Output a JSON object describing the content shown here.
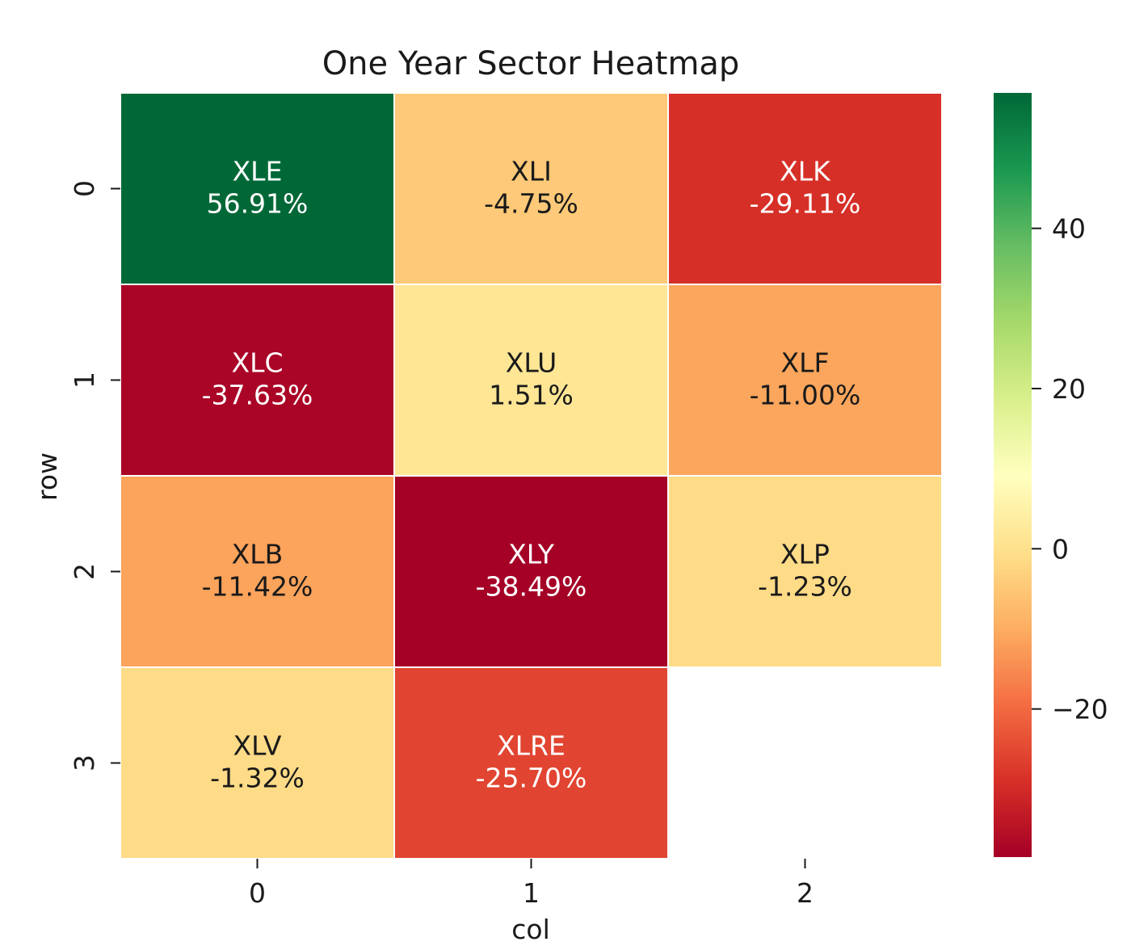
{
  "chart_data": {
    "type": "heatmap",
    "title": "One Year Sector Heatmap",
    "xlabel": "col",
    "ylabel": "row",
    "x_tick_labels": [
      "0",
      "1",
      "2"
    ],
    "y_tick_labels": [
      "0",
      "1",
      "2",
      "3"
    ],
    "cells": [
      {
        "row": 0,
        "col": 0,
        "ticker": "XLE",
        "value": 56.91,
        "label": "56.91%"
      },
      {
        "row": 0,
        "col": 1,
        "ticker": "XLI",
        "value": -4.75,
        "label": "-4.75%"
      },
      {
        "row": 0,
        "col": 2,
        "ticker": "XLK",
        "value": -29.11,
        "label": "-29.11%"
      },
      {
        "row": 1,
        "col": 0,
        "ticker": "XLC",
        "value": -37.63,
        "label": "-37.63%"
      },
      {
        "row": 1,
        "col": 1,
        "ticker": "XLU",
        "value": 1.51,
        "label": "1.51%"
      },
      {
        "row": 1,
        "col": 2,
        "ticker": "XLF",
        "value": -11.0,
        "label": "-11.00%"
      },
      {
        "row": 2,
        "col": 0,
        "ticker": "XLB",
        "value": -11.42,
        "label": "-11.42%"
      },
      {
        "row": 2,
        "col": 1,
        "ticker": "XLY",
        "value": -38.49,
        "label": "-38.49%"
      },
      {
        "row": 2,
        "col": 2,
        "ticker": "XLP",
        "value": -1.23,
        "label": "-1.23%"
      },
      {
        "row": 3,
        "col": 0,
        "ticker": "XLV",
        "value": -1.32,
        "label": "-1.32%"
      },
      {
        "row": 3,
        "col": 1,
        "ticker": "XLRE",
        "value": -25.7,
        "label": "-25.70%"
      }
    ],
    "colormap": "RdYlGn",
    "colorbar": {
      "range": [
        -38.49,
        56.91
      ],
      "ticks": [
        40,
        20,
        0,
        -20
      ],
      "tick_labels": [
        "40",
        "20",
        "0",
        "−20"
      ]
    }
  }
}
